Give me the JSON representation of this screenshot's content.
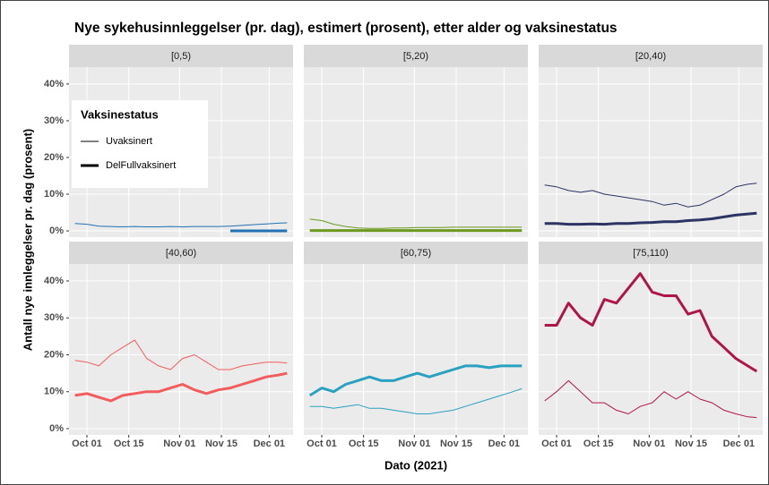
{
  "chart_data": {
    "type": "line",
    "title": "Nye sykehusinnleggelser (pr. dag), estimert (prosent), etter alder og vaksinestatus",
    "xlabel": "Dato (2021)",
    "ylabel": "Antall nye innleggelser pr. dag (prosent)",
    "legend": {
      "title": "Vaksinestatus",
      "position": "top-left"
    },
    "series": [
      {
        "name": "Uvaksinert",
        "width": 1
      },
      {
        "name": "DelFullvaksinert",
        "width": 3
      }
    ],
    "grid": true,
    "xlim": [
      "2021-09-25",
      "2021-12-09"
    ],
    "xticks": [
      {
        "value": "2021-10-01",
        "label": "Oct 01"
      },
      {
        "value": "2021-10-15",
        "label": "Oct 15"
      },
      {
        "value": "2021-11-01",
        "label": "Nov 01"
      },
      {
        "value": "2021-11-15",
        "label": "Nov 15"
      },
      {
        "value": "2021-12-01",
        "label": "Dec 01"
      }
    ],
    "ylim": [
      -1.7,
      44.6
    ],
    "yticks": [
      {
        "value": 0,
        "label": "0%"
      },
      {
        "value": 10,
        "label": "10%"
      },
      {
        "value": 20,
        "label": "20%"
      },
      {
        "value": 30,
        "label": "30%"
      },
      {
        "value": 40,
        "label": "40%"
      }
    ],
    "x": [
      "2021-09-27",
      "2021-10-01",
      "2021-10-05",
      "2021-10-09",
      "2021-10-13",
      "2021-10-17",
      "2021-10-21",
      "2021-10-25",
      "2021-10-29",
      "2021-11-02",
      "2021-11-06",
      "2021-11-10",
      "2021-11-14",
      "2021-11-18",
      "2021-11-22",
      "2021-11-26",
      "2021-11-30",
      "2021-12-04",
      "2021-12-07"
    ],
    "facets": [
      {
        "title": "[0,5)",
        "color": "#2171b5",
        "values": [
          [
            2,
            1.8,
            1.3,
            1.2,
            1.1,
            1.2,
            1.1,
            1.1,
            1.2,
            1.1,
            1.2,
            1.2,
            1.2,
            1.3,
            1.5,
            1.7,
            1.9,
            2.1,
            2.2
          ],
          [
            null,
            null,
            null,
            null,
            null,
            null,
            null,
            null,
            null,
            null,
            null,
            null,
            null,
            0,
            0,
            0,
            0,
            0,
            0
          ]
        ]
      },
      {
        "title": "[5,20)",
        "color": "#6b9a1f",
        "values": [
          [
            3.2,
            2.8,
            1.8,
            1.2,
            0.8,
            0.7,
            0.7,
            0.8,
            0.8,
            0.9,
            0.9,
            0.9,
            1,
            1,
            1,
            1,
            1,
            1,
            1
          ],
          [
            0.1,
            0.1,
            0.1,
            0.1,
            0.1,
            0.1,
            0.1,
            0.1,
            0.1,
            0.1,
            0.1,
            0.1,
            0.1,
            0.1,
            0.1,
            0.1,
            0.1,
            0.1,
            0.1
          ]
        ]
      },
      {
        "title": "[20,40)",
        "color": "#2b3463",
        "values": [
          [
            12.5,
            12,
            11,
            10.5,
            11,
            10,
            9.5,
            9,
            8.5,
            8,
            7,
            7.5,
            6.5,
            7,
            8.5,
            10,
            12,
            12.7,
            13
          ],
          [
            2,
            2,
            1.8,
            1.8,
            1.9,
            1.8,
            2,
            2,
            2.2,
            2.3,
            2.5,
            2.5,
            2.8,
            3,
            3.3,
            3.8,
            4.3,
            4.6,
            4.8
          ]
        ]
      },
      {
        "title": "[40,60)",
        "color": "#f25c5c",
        "values": [
          [
            18.5,
            18,
            17,
            20,
            22,
            24,
            19,
            17,
            16,
            19,
            20,
            18,
            16,
            16,
            17,
            17.5,
            18,
            18,
            17.8
          ],
          [
            9,
            9.5,
            8.5,
            7.5,
            9,
            9.5,
            10,
            10,
            11,
            12,
            10.5,
            9.5,
            10.5,
            11,
            12,
            13,
            14,
            14.5,
            15
          ]
        ]
      },
      {
        "title": "[60,75)",
        "color": "#2aa1c0",
        "values": [
          [
            6,
            6,
            5.5,
            6,
            6.5,
            5.5,
            5.5,
            5,
            4.5,
            4,
            4,
            4.5,
            5,
            6,
            7,
            8,
            9,
            10,
            10.8
          ],
          [
            9,
            11,
            10,
            12,
            13,
            14,
            13,
            13,
            14,
            15,
            14,
            15,
            16,
            17,
            17,
            16.5,
            17,
            17,
            17
          ]
        ]
      },
      {
        "title": "[75,110)",
        "color": "#b0154a",
        "values": [
          [
            7.5,
            10,
            13,
            10,
            7,
            7,
            5,
            4,
            6,
            7,
            10,
            8,
            10,
            8,
            7,
            5,
            4,
            3.2,
            3
          ],
          [
            28,
            28,
            34,
            30,
            28,
            35,
            34,
            38,
            42,
            37,
            36,
            36,
            31,
            32,
            25,
            22,
            19,
            17,
            15.5
          ]
        ]
      }
    ]
  }
}
